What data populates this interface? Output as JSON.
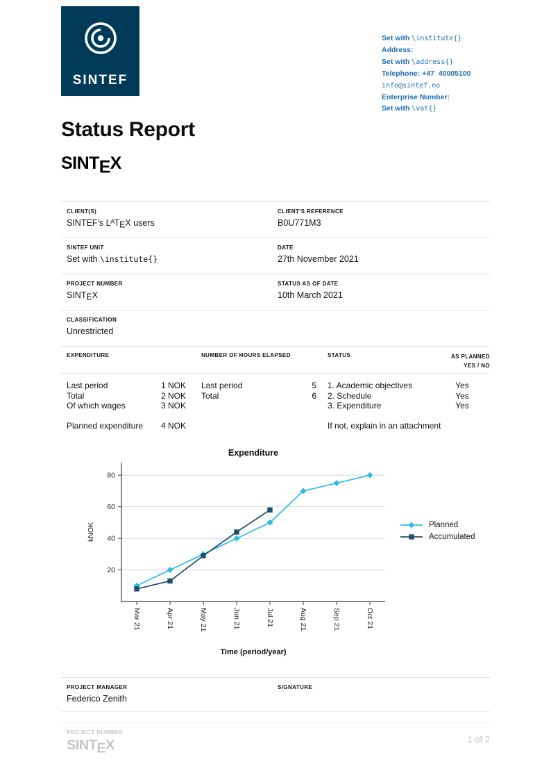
{
  "colors": {
    "navy": "#003A59",
    "link_blue": "#1C6FB4",
    "planned": "#2FB9E8",
    "accumulated": "#1C4F6D",
    "muted": "#C6C6C6"
  },
  "logo": {
    "text": "SINTEF"
  },
  "contact": {
    "institute_prefix": "Set with ",
    "institute_code": "\\institute{}",
    "address_label": "Address:",
    "address_prefix": "Set with ",
    "address_code": "\\address{}",
    "telephone": "Telephone: +47  40005100",
    "email": "info@sintef.no",
    "enterprise_label": "Enterprise Number:",
    "vat_prefix": "Set with ",
    "vat_code": "\\vat{}"
  },
  "doc": {
    "title": "Status Report",
    "project_logo": {
      "pre": "SINT",
      "drop": "E",
      "post": "X"
    }
  },
  "info": {
    "client_label": "CLIENT(S)",
    "client_value": {
      "pre": "SINTEF's ",
      "L": "L",
      "A": "A",
      "T": "T",
      "E": "E",
      "X": "X",
      "post": " users"
    },
    "client_ref_label": "CLIENT'S REFERENCE",
    "client_ref_value": "B0U771M3",
    "unit_label": "SINTEF UNIT",
    "unit_prefix": "Set with ",
    "unit_code": "\\institute{}",
    "date_label": "DATE",
    "date_value": "27th November 2021",
    "project_number_label": "PROJECT NUMBER",
    "project_number_value": {
      "pre": "SINT",
      "drop": "E",
      "post": "X"
    },
    "status_date_label": "STATUS AS OF DATE",
    "status_date_value": "10th March 2021",
    "classification_label": "CLASSIFICATION",
    "classification_value": "Unrestricted"
  },
  "status_table": {
    "header_expenditure": "EXPENDITURE",
    "header_hours": "NUMBER OF HOURS ELAPSED",
    "header_status": "STATUS",
    "header_planned_1": "AS PLANNED",
    "header_planned_2": "YES / NO",
    "expenditure_rows": [
      {
        "label": "Last period",
        "value": "1 NOK"
      },
      {
        "label": "Total",
        "value": "2 NOK"
      },
      {
        "label": "Of which wages",
        "value": "3 NOK"
      }
    ],
    "planned_row": {
      "label": "Planned expenditure",
      "value": "4 NOK"
    },
    "hours_rows": [
      {
        "label": "Last period",
        "value": "5"
      },
      {
        "label": "Total",
        "value": "6"
      }
    ],
    "status_rows": [
      "1. Academic objectives",
      "2. Schedule",
      "3. Expenditure"
    ],
    "status_note": "If not, explain in an attachment",
    "as_planned_values": [
      "Yes",
      "Yes",
      "Yes"
    ]
  },
  "chart_data": {
    "type": "line",
    "title": "Expenditure",
    "xlabel": "Time (period/year)",
    "ylabel": "kNOK",
    "categories": [
      "Mar 21",
      "Apr 21",
      "May 21",
      "Jun 21",
      "Jul 21",
      "Aug 21",
      "Sep 21",
      "Oct 21"
    ],
    "yticks": [
      20,
      40,
      60,
      80
    ],
    "ylim": [
      0,
      88
    ],
    "grid": "horizontal",
    "legend_position": "right",
    "series": [
      {
        "name": "Planned",
        "marker": "diamond",
        "color": "#2FB9E8",
        "values": [
          10,
          20,
          30,
          40,
          50,
          70,
          75,
          80
        ]
      },
      {
        "name": "Accumulated",
        "marker": "square",
        "color": "#1C4F6D",
        "values": [
          8,
          13,
          29,
          44,
          58
        ]
      }
    ]
  },
  "signoff": {
    "manager_label": "PROJECT MANAGER",
    "manager_value": "Federico Zenith",
    "signature_label": "SIGNATURE"
  },
  "footer": {
    "project_number_label": "PROJECT NUMBER",
    "project_logo": {
      "pre": "SINT",
      "drop": "E",
      "post": "X"
    },
    "page_indicator": "1 of 2"
  }
}
